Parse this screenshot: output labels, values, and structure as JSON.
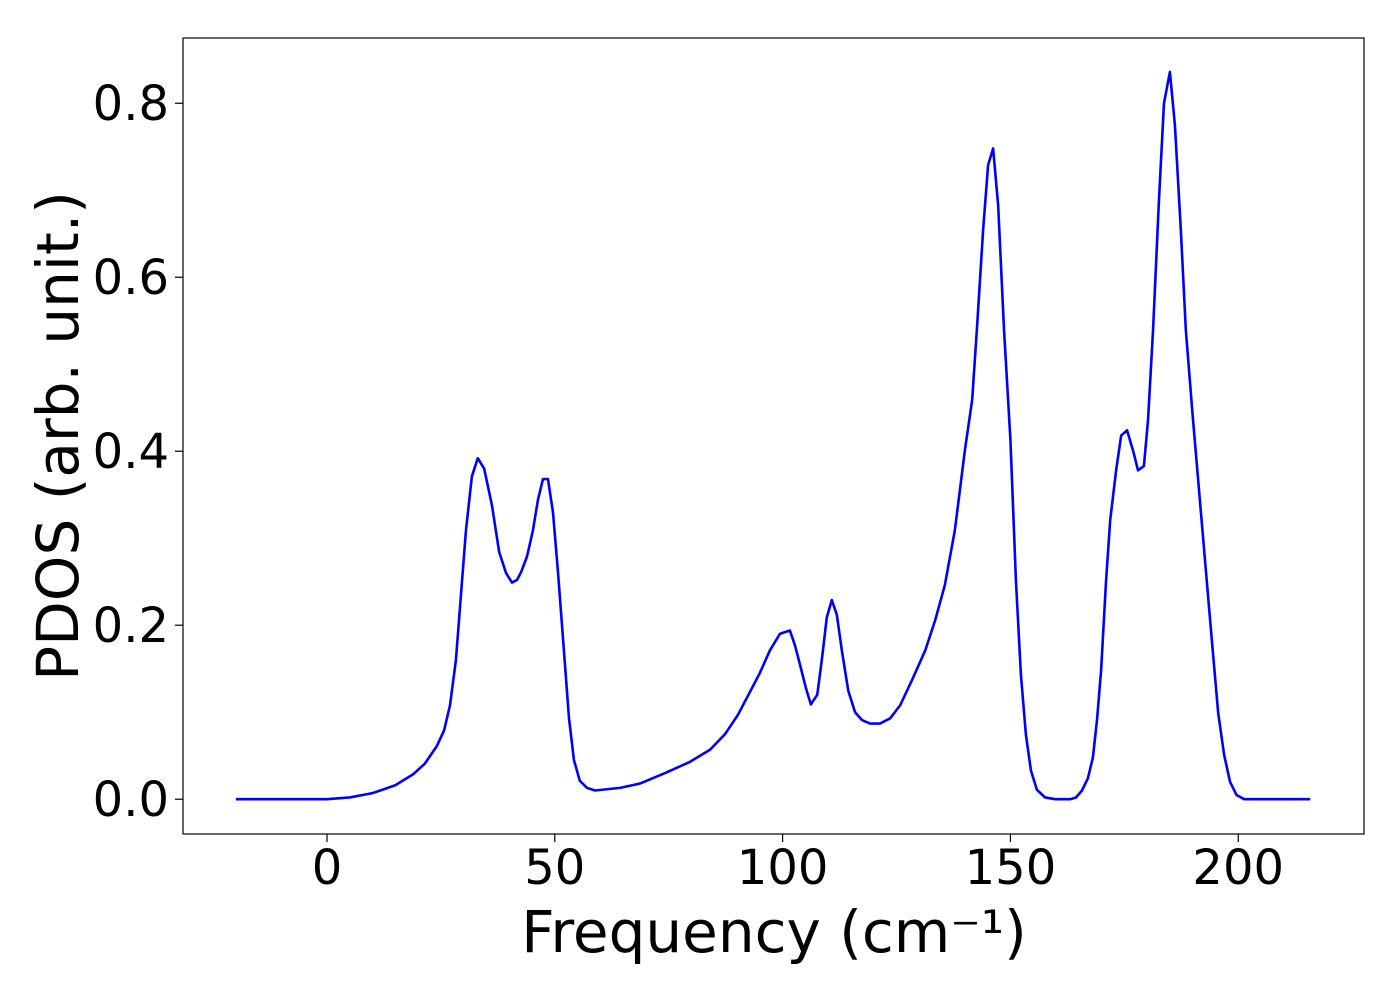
{
  "chart_data": {
    "type": "line",
    "x_label": "Frequency (cm⁻¹)",
    "y_label": "PDOS (arb. unit.)",
    "color": "#0000ff",
    "xlim": [
      -31.6,
      227.6
    ],
    "ylim": [
      -0.04,
      0.875
    ],
    "xticks": [
      0,
      50,
      100,
      150,
      200
    ],
    "yticks": [
      {
        "value": 0,
        "label": "0.0"
      },
      0.2,
      0.4,
      0.6,
      0.8
    ],
    "x": [
      -20,
      0,
      5,
      10,
      15,
      19,
      21.5,
      24.1,
      25.7,
      27,
      28.3,
      30.5,
      31.8,
      33.1,
      34.5,
      36.2,
      37.8,
      39.3,
      40.6,
      41.7,
      42.6,
      43.9,
      45.2,
      46.3,
      47.4,
      48.5,
      49.6,
      50.7,
      52.0,
      53.1,
      54.2,
      55.5,
      57.1,
      58.8,
      64.3,
      68.7,
      74.2,
      79.7,
      84.1,
      87.4,
      90.2,
      95.0,
      97.2,
      99.4,
      101.6,
      102.7,
      103.8,
      105.1,
      106.2,
      107.6,
      108.6,
      109.7,
      110.8,
      111.9,
      113.0,
      114.4,
      115.9,
      117.4,
      119.2,
      121.4,
      123.6,
      125.8,
      128.4,
      131.3,
      133.5,
      135.6,
      137.8,
      140.0,
      141.6,
      142.7,
      144.0,
      145.1,
      146.2,
      147.3,
      148.6,
      150.0,
      151.2,
      152.3,
      153.4,
      154.5,
      155.8,
      157.6,
      159.8,
      163.1,
      164.4,
      165.7,
      167.0,
      168.1,
      169.0,
      169.9,
      171.0,
      171.9,
      173.2,
      174.3,
      175.6,
      176.9,
      178.0,
      179.3,
      180.2,
      181.3,
      182.6,
      183.7,
      185.0,
      186.1,
      187.4,
      188.5,
      189.9,
      191.2,
      192.7,
      194.2,
      195.6,
      196.9,
      198.2,
      199.6,
      201.3,
      215.8
    ],
    "values": [
      0,
      0,
      0.002,
      0.007,
      0.016,
      0.029,
      0.041,
      0.061,
      0.079,
      0.108,
      0.16,
      0.309,
      0.371,
      0.392,
      0.38,
      0.338,
      0.284,
      0.26,
      0.249,
      0.252,
      0.261,
      0.279,
      0.309,
      0.344,
      0.368,
      0.368,
      0.33,
      0.261,
      0.171,
      0.094,
      0.045,
      0.021,
      0.013,
      0.01,
      0.013,
      0.018,
      0.03,
      0.043,
      0.057,
      0.075,
      0.097,
      0.145,
      0.171,
      0.19,
      0.194,
      0.177,
      0.155,
      0.128,
      0.109,
      0.12,
      0.16,
      0.209,
      0.229,
      0.212,
      0.171,
      0.125,
      0.1,
      0.091,
      0.087,
      0.087,
      0.093,
      0.108,
      0.137,
      0.171,
      0.206,
      0.246,
      0.309,
      0.401,
      0.459,
      0.545,
      0.654,
      0.729,
      0.748,
      0.683,
      0.539,
      0.413,
      0.252,
      0.143,
      0.074,
      0.033,
      0.011,
      0.002,
      0,
      0,
      0.002,
      0.01,
      0.024,
      0.048,
      0.091,
      0.148,
      0.252,
      0.321,
      0.378,
      0.418,
      0.424,
      0.401,
      0.378,
      0.383,
      0.436,
      0.539,
      0.689,
      0.8,
      0.836,
      0.775,
      0.654,
      0.539,
      0.447,
      0.367,
      0.275,
      0.183,
      0.099,
      0.051,
      0.02,
      0.005,
      0,
      0
    ]
  }
}
